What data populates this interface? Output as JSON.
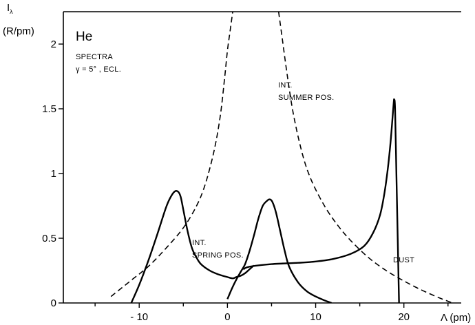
{
  "chart_data": {
    "type": "line",
    "title": "He",
    "subtitle_line1": "SPECTRA",
    "subtitle_line2": "γ = 5° , ECL.",
    "ylabel_line1": "I",
    "ylabel_sub": "λ",
    "ylabel_line2": "(R/pm)",
    "xlabel": "Λ (pm)",
    "xlim": [
      -18.6,
      26.5
    ],
    "ylim": [
      0,
      2.25
    ],
    "grid": false,
    "x_ticks": [
      {
        "value": -10,
        "label": "- 10"
      },
      {
        "value": 0,
        "label": "0"
      },
      {
        "value": 10,
        "label": "10"
      },
      {
        "value": 20,
        "label": "20"
      }
    ],
    "y_ticks": [
      {
        "value": 0,
        "label": "0"
      },
      {
        "value": 0.5,
        "label": "0.5"
      },
      {
        "value": 1,
        "label": "1"
      },
      {
        "value": 1.5,
        "label": "1.5"
      },
      {
        "value": 2,
        "label": "2"
      }
    ],
    "series": [
      {
        "name": "INT. SPRING POS.",
        "label_lines": [
          "INT.",
          "SPRING POS."
        ],
        "style": "solid",
        "x": [
          -10.9,
          -10.0,
          -9.0,
          -8.0,
          -7.0,
          -6.5,
          -6.0,
          -5.6,
          -5.3,
          -5.0,
          -4.5,
          -4.0,
          -3.5,
          -3.0,
          -2.0,
          -1.0,
          0.0,
          0.6,
          1.0,
          1.5,
          2.0,
          2.5,
          3.0
        ],
        "y": [
          0,
          0.14,
          0.32,
          0.52,
          0.73,
          0.81,
          0.86,
          0.86,
          0.82,
          0.72,
          0.55,
          0.42,
          0.35,
          0.3,
          0.25,
          0.22,
          0.2,
          0.19,
          0.2,
          0.21,
          0.23,
          0.26,
          0.29
        ]
      },
      {
        "name": "",
        "style": "solid",
        "x": [
          0.0,
          0.5,
          1.0,
          1.5,
          2.0,
          2.5,
          3.0,
          3.5,
          4.0,
          4.5,
          4.8,
          5.1,
          5.5,
          6.0,
          6.5,
          7.0,
          8.0,
          9.0,
          10.0,
          11.0,
          11.8
        ],
        "y": [
          0.03,
          0.11,
          0.18,
          0.24,
          0.3,
          0.4,
          0.52,
          0.65,
          0.75,
          0.79,
          0.8,
          0.78,
          0.7,
          0.55,
          0.4,
          0.28,
          0.16,
          0.09,
          0.05,
          0.02,
          0.0
        ]
      },
      {
        "name": "DUST",
        "style": "solid",
        "x": [
          1.8,
          2.5,
          5.0,
          8.0,
          10.0,
          12.0,
          14.0,
          15.5,
          16.5,
          17.3,
          17.8,
          18.2,
          18.5,
          18.7,
          18.85,
          18.9,
          19.0,
          19.15,
          19.3,
          19.45
        ],
        "y": [
          0.26,
          0.28,
          0.3,
          0.31,
          0.32,
          0.34,
          0.38,
          0.44,
          0.54,
          0.68,
          0.85,
          1.05,
          1.25,
          1.42,
          1.55,
          1.57,
          1.5,
          1.0,
          0.5,
          0.0
        ]
      },
      {
        "name": "INT. SUMMER POS.",
        "label_lines": [
          "INT.",
          "SUMMER POS."
        ],
        "style": "dashed",
        "x": [
          -13.2,
          -11.0,
          -9.0,
          -7.0,
          -5.0,
          -3.5,
          -2.5,
          -1.5,
          -0.8,
          -0.3,
          0.0,
          0.3,
          0.6
        ],
        "y": [
          0.05,
          0.17,
          0.28,
          0.42,
          0.58,
          0.75,
          0.92,
          1.18,
          1.45,
          1.75,
          1.95,
          2.1,
          2.25
        ]
      },
      {
        "name": "",
        "style": "dashed",
        "x": [
          5.8,
          6.2,
          6.8,
          7.5,
          8.5,
          9.5,
          11.0,
          12.5,
          14.0,
          16.0,
          18.0,
          20.0,
          22.0,
          24.0,
          25.5
        ],
        "y": [
          2.25,
          2.05,
          1.75,
          1.45,
          1.15,
          0.95,
          0.75,
          0.6,
          0.48,
          0.35,
          0.25,
          0.17,
          0.1,
          0.04,
          0.0
        ]
      }
    ]
  }
}
